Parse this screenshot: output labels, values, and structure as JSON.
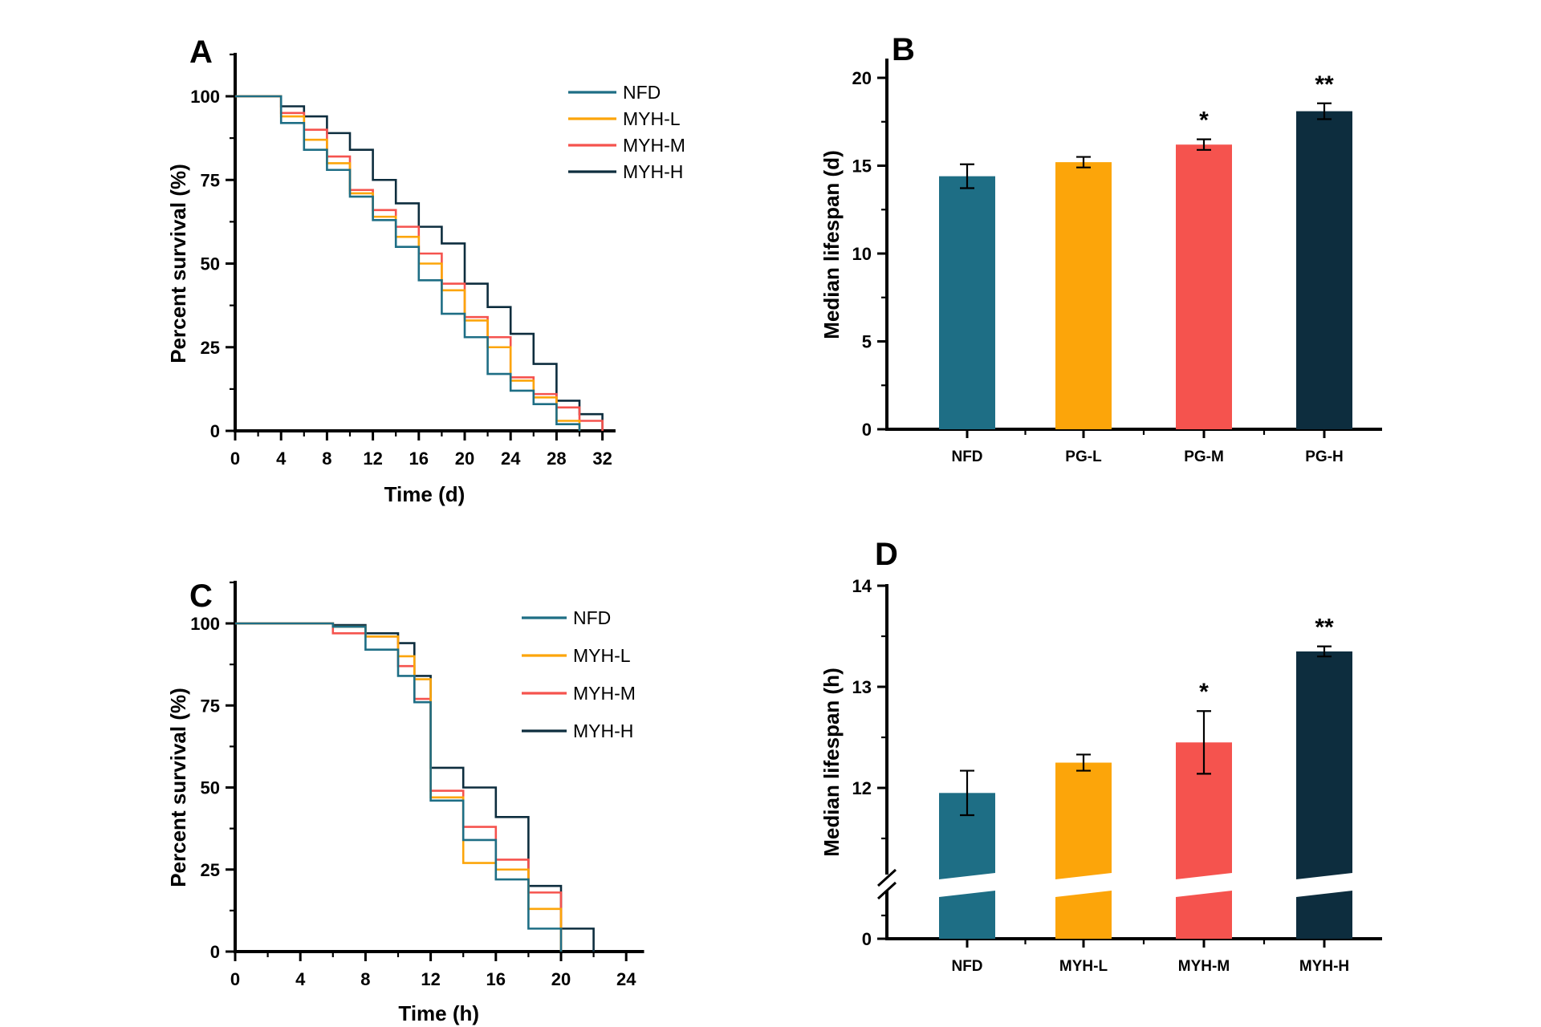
{
  "figure": {
    "background": "#ffffff",
    "series_colors": {
      "NFD": "#1E6E85",
      "MYH-L": "#FCA50A",
      "MYH-M": "#F5534E",
      "MYH-H": "#0D2D3E"
    }
  },
  "chart_data": [
    {
      "id": "A",
      "panel_label": "A",
      "type": "step-survival",
      "xlabel": "Time (d)",
      "ylabel": "Percent survival (%)",
      "xticks": [
        0,
        4,
        8,
        12,
        16,
        20,
        24,
        28,
        32
      ],
      "yticks": [
        0,
        25,
        50,
        75,
        100
      ],
      "xlim": [
        0,
        33
      ],
      "ylim": [
        0,
        112.5
      ],
      "x_minor_step": 2,
      "y_minor_step": 12.5,
      "grid": false,
      "legend_position": "upper-right",
      "legend": [
        "NFD",
        "MYH-L",
        "MYH-M",
        "MYH-H"
      ],
      "series": [
        {
          "name": "NFD",
          "color": "#1E6E85",
          "points": [
            [
              0,
              100
            ],
            [
              4,
              92
            ],
            [
              6,
              84
            ],
            [
              8,
              78
            ],
            [
              10,
              70
            ],
            [
              12,
              63
            ],
            [
              14,
              55
            ],
            [
              16,
              45
            ],
            [
              18,
              35
            ],
            [
              20,
              28
            ],
            [
              22,
              17
            ],
            [
              24,
              12
            ],
            [
              26,
              8
            ],
            [
              28,
              2
            ],
            [
              30,
              0
            ]
          ]
        },
        {
          "name": "MYH-L",
          "color": "#FCA50A",
          "points": [
            [
              0,
              100
            ],
            [
              4,
              94
            ],
            [
              6,
              87
            ],
            [
              8,
              80
            ],
            [
              10,
              71
            ],
            [
              12,
              64
            ],
            [
              14,
              58
            ],
            [
              16,
              50
            ],
            [
              18,
              42
            ],
            [
              20,
              33
            ],
            [
              22,
              25
            ],
            [
              24,
              15
            ],
            [
              26,
              10
            ],
            [
              28,
              3
            ],
            [
              30,
              0
            ]
          ]
        },
        {
          "name": "MYH-M",
          "color": "#F5534E",
          "points": [
            [
              0,
              100
            ],
            [
              4,
              95
            ],
            [
              6,
              90
            ],
            [
              8,
              82
            ],
            [
              10,
              72
            ],
            [
              12,
              66
            ],
            [
              14,
              61
            ],
            [
              16,
              53
            ],
            [
              18,
              44
            ],
            [
              20,
              34
            ],
            [
              22,
              28
            ],
            [
              24,
              16
            ],
            [
              26,
              11
            ],
            [
              28,
              7
            ],
            [
              30,
              3
            ],
            [
              32,
              0
            ]
          ]
        },
        {
          "name": "MYH-H",
          "color": "#0D2D3E",
          "points": [
            [
              0,
              100
            ],
            [
              4,
              97
            ],
            [
              6,
              94
            ],
            [
              8,
              89
            ],
            [
              10,
              84
            ],
            [
              12,
              75
            ],
            [
              14,
              68
            ],
            [
              16,
              61
            ],
            [
              18,
              56
            ],
            [
              20,
              44
            ],
            [
              22,
              37
            ],
            [
              24,
              29
            ],
            [
              26,
              20
            ],
            [
              28,
              9
            ],
            [
              30,
              5
            ],
            [
              32,
              0
            ]
          ]
        }
      ]
    },
    {
      "id": "B",
      "panel_label": "B",
      "type": "bar",
      "ylabel": "Median lifespan (d)",
      "categories": [
        "NFD",
        "PG-L",
        "PG-M",
        "PG-H"
      ],
      "values": [
        14.4,
        15.2,
        16.2,
        18.1
      ],
      "errors": [
        0.68,
        0.3,
        0.3,
        0.45
      ],
      "significance": [
        "",
        "",
        "*",
        "**"
      ],
      "bar_colors": [
        "#1E6E85",
        "#FCA50A",
        "#F5534E",
        "#0D2D3E"
      ],
      "yticks": [
        0,
        5,
        10,
        15,
        20
      ],
      "y_minor_step": 2.5,
      "ylim": [
        0,
        21
      ],
      "grid": false
    },
    {
      "id": "C",
      "panel_label": "C",
      "type": "step-survival",
      "xlabel": "Time (h)",
      "ylabel": "Percent survival (%)",
      "xticks": [
        0,
        4,
        8,
        12,
        16,
        20,
        24
      ],
      "yticks": [
        0,
        25,
        50,
        75,
        100
      ],
      "xlim": [
        0,
        25
      ],
      "ylim": [
        0,
        112.5
      ],
      "x_minor_step": 2,
      "y_minor_step": 12.5,
      "grid": false,
      "legend_position": "upper-right",
      "legend": [
        "NFD",
        "MYH-L",
        "MYH-M",
        "MYH-H"
      ],
      "series": [
        {
          "name": "NFD",
          "color": "#1E6E85",
          "points": [
            [
              0,
              100
            ],
            [
              6,
              99
            ],
            [
              8,
              92
            ],
            [
              10,
              84
            ],
            [
              11,
              76
            ],
            [
              12,
              46
            ],
            [
              14,
              34
            ],
            [
              16,
              22
            ],
            [
              18,
              7
            ],
            [
              20,
              0
            ]
          ]
        },
        {
          "name": "MYH-L",
          "color": "#FCA50A",
          "points": [
            [
              0,
              100
            ],
            [
              6,
              99
            ],
            [
              8,
              96
            ],
            [
              10,
              90
            ],
            [
              11,
              83
            ],
            [
              12,
              47
            ],
            [
              14,
              27
            ],
            [
              16,
              25
            ],
            [
              18,
              13
            ],
            [
              20,
              0
            ]
          ]
        },
        {
          "name": "MYH-M",
          "color": "#F5534E",
          "points": [
            [
              0,
              100
            ],
            [
              6,
              97
            ],
            [
              8,
              96
            ],
            [
              10,
              87
            ],
            [
              11,
              77
            ],
            [
              12,
              49
            ],
            [
              14,
              38
            ],
            [
              16,
              28
            ],
            [
              18,
              18
            ],
            [
              20,
              0
            ]
          ]
        },
        {
          "name": "MYH-H",
          "color": "#0D2D3E",
          "points": [
            [
              0,
              100
            ],
            [
              6,
              99.5
            ],
            [
              8,
              97
            ],
            [
              10,
              94
            ],
            [
              11,
              84
            ],
            [
              12,
              56
            ],
            [
              14,
              50
            ],
            [
              16,
              41
            ],
            [
              18,
              20
            ],
            [
              20,
              7
            ],
            [
              22,
              0
            ]
          ]
        }
      ]
    },
    {
      "id": "D",
      "panel_label": "D",
      "type": "bar-broken",
      "ylabel": "Median lifespan (h)",
      "categories": [
        "NFD",
        "MYH-L",
        "MYH-M",
        "MYH-H"
      ],
      "values": [
        11.95,
        12.25,
        12.45,
        13.35
      ],
      "errors": [
        0.22,
        0.08,
        0.31,
        0.05
      ],
      "significance": [
        "",
        "",
        "*",
        "**"
      ],
      "bar_colors": [
        "#1E6E85",
        "#FCA50A",
        "#F5534E",
        "#0D2D3E"
      ],
      "yticks_upper": [
        12,
        13,
        14
      ],
      "ytick_bottom": 0,
      "y_minor_step": 0.5,
      "upper_range": [
        11.5,
        14
      ],
      "axis_break": true,
      "grid": false
    }
  ]
}
